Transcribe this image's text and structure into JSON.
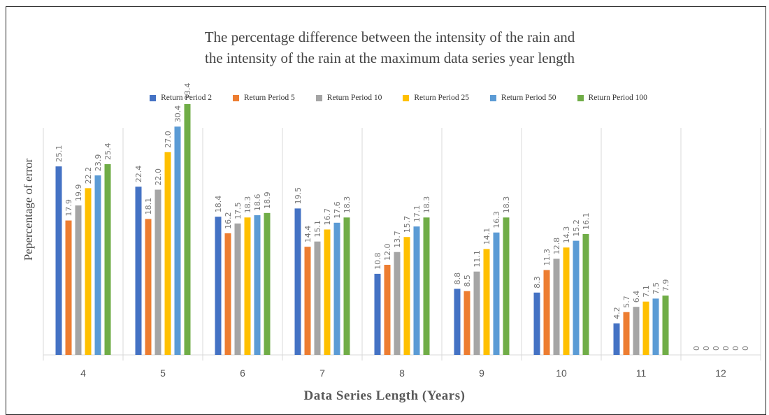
{
  "chart_data": {
    "type": "bar",
    "title_line1": "The percentage difference between the intensity of the rain and",
    "title_line2": "the intensity of the rain at the maximum data series year length",
    "xlabel": "Data Series Length (Years)",
    "ylabel": "Pepercentage  of error",
    "categories": [
      "4",
      "5",
      "6",
      "7",
      "8",
      "9",
      "10",
      "11",
      "12"
    ],
    "grid": "vertical separators between categories",
    "legend_position": "top",
    "series": [
      {
        "name": "Return Period 2",
        "color": "#4472C4",
        "values": [
          25.1,
          22.4,
          18.4,
          19.5,
          10.8,
          8.8,
          8.3,
          4.2,
          0
        ]
      },
      {
        "name": "Return Period 5",
        "color": "#ED7D31",
        "values": [
          17.9,
          18.1,
          16.2,
          14.4,
          12.0,
          8.5,
          11.3,
          5.7,
          0
        ]
      },
      {
        "name": "Return Period 10",
        "color": "#A5A5A5",
        "values": [
          19.9,
          22.0,
          17.5,
          15.1,
          13.7,
          11.1,
          12.8,
          6.4,
          0
        ]
      },
      {
        "name": "Return Period 25",
        "color": "#FFC000",
        "values": [
          22.2,
          27.0,
          18.3,
          16.7,
          15.7,
          14.1,
          14.3,
          7.1,
          0
        ]
      },
      {
        "name": "Return Period 50",
        "color": "#5B9BD5",
        "values": [
          23.9,
          30.4,
          18.6,
          17.6,
          17.1,
          16.3,
          15.2,
          7.5,
          0
        ]
      },
      {
        "name": "Return Period 100",
        "color": "#70AD47",
        "values": [
          25.4,
          33.4,
          18.9,
          18.3,
          18.3,
          18.3,
          16.1,
          7.9,
          0
        ]
      }
    ],
    "data_labels": [
      [
        "25.1",
        "17.9",
        "19.9",
        "22.2",
        "23.9",
        "25.4"
      ],
      [
        "22.4",
        "18.1",
        "22.0",
        "27.0",
        "30.4",
        "33.4"
      ],
      [
        "18.4",
        "16.2",
        "17.5",
        "18.3",
        "18.6",
        "18.9"
      ],
      [
        "19.5",
        "14.4",
        "15.1",
        "16.7",
        "17.6",
        "18.3"
      ],
      [
        "10.8",
        "12.0",
        "13.7",
        "15.7",
        "17.1",
        "18.3"
      ],
      [
        "8.8",
        "8.5",
        "11.1",
        "14.1",
        "16.3",
        "18.3"
      ],
      [
        "8.3",
        "11.3",
        "12.8",
        "14.3",
        "15.2",
        "16.1"
      ],
      [
        "4.2",
        "5.7",
        "6.4",
        "7.1",
        "7.5",
        "7.9"
      ],
      [
        "0",
        "0",
        "0",
        "0",
        "0",
        "0"
      ]
    ],
    "ylim": [
      0,
      40
    ]
  }
}
